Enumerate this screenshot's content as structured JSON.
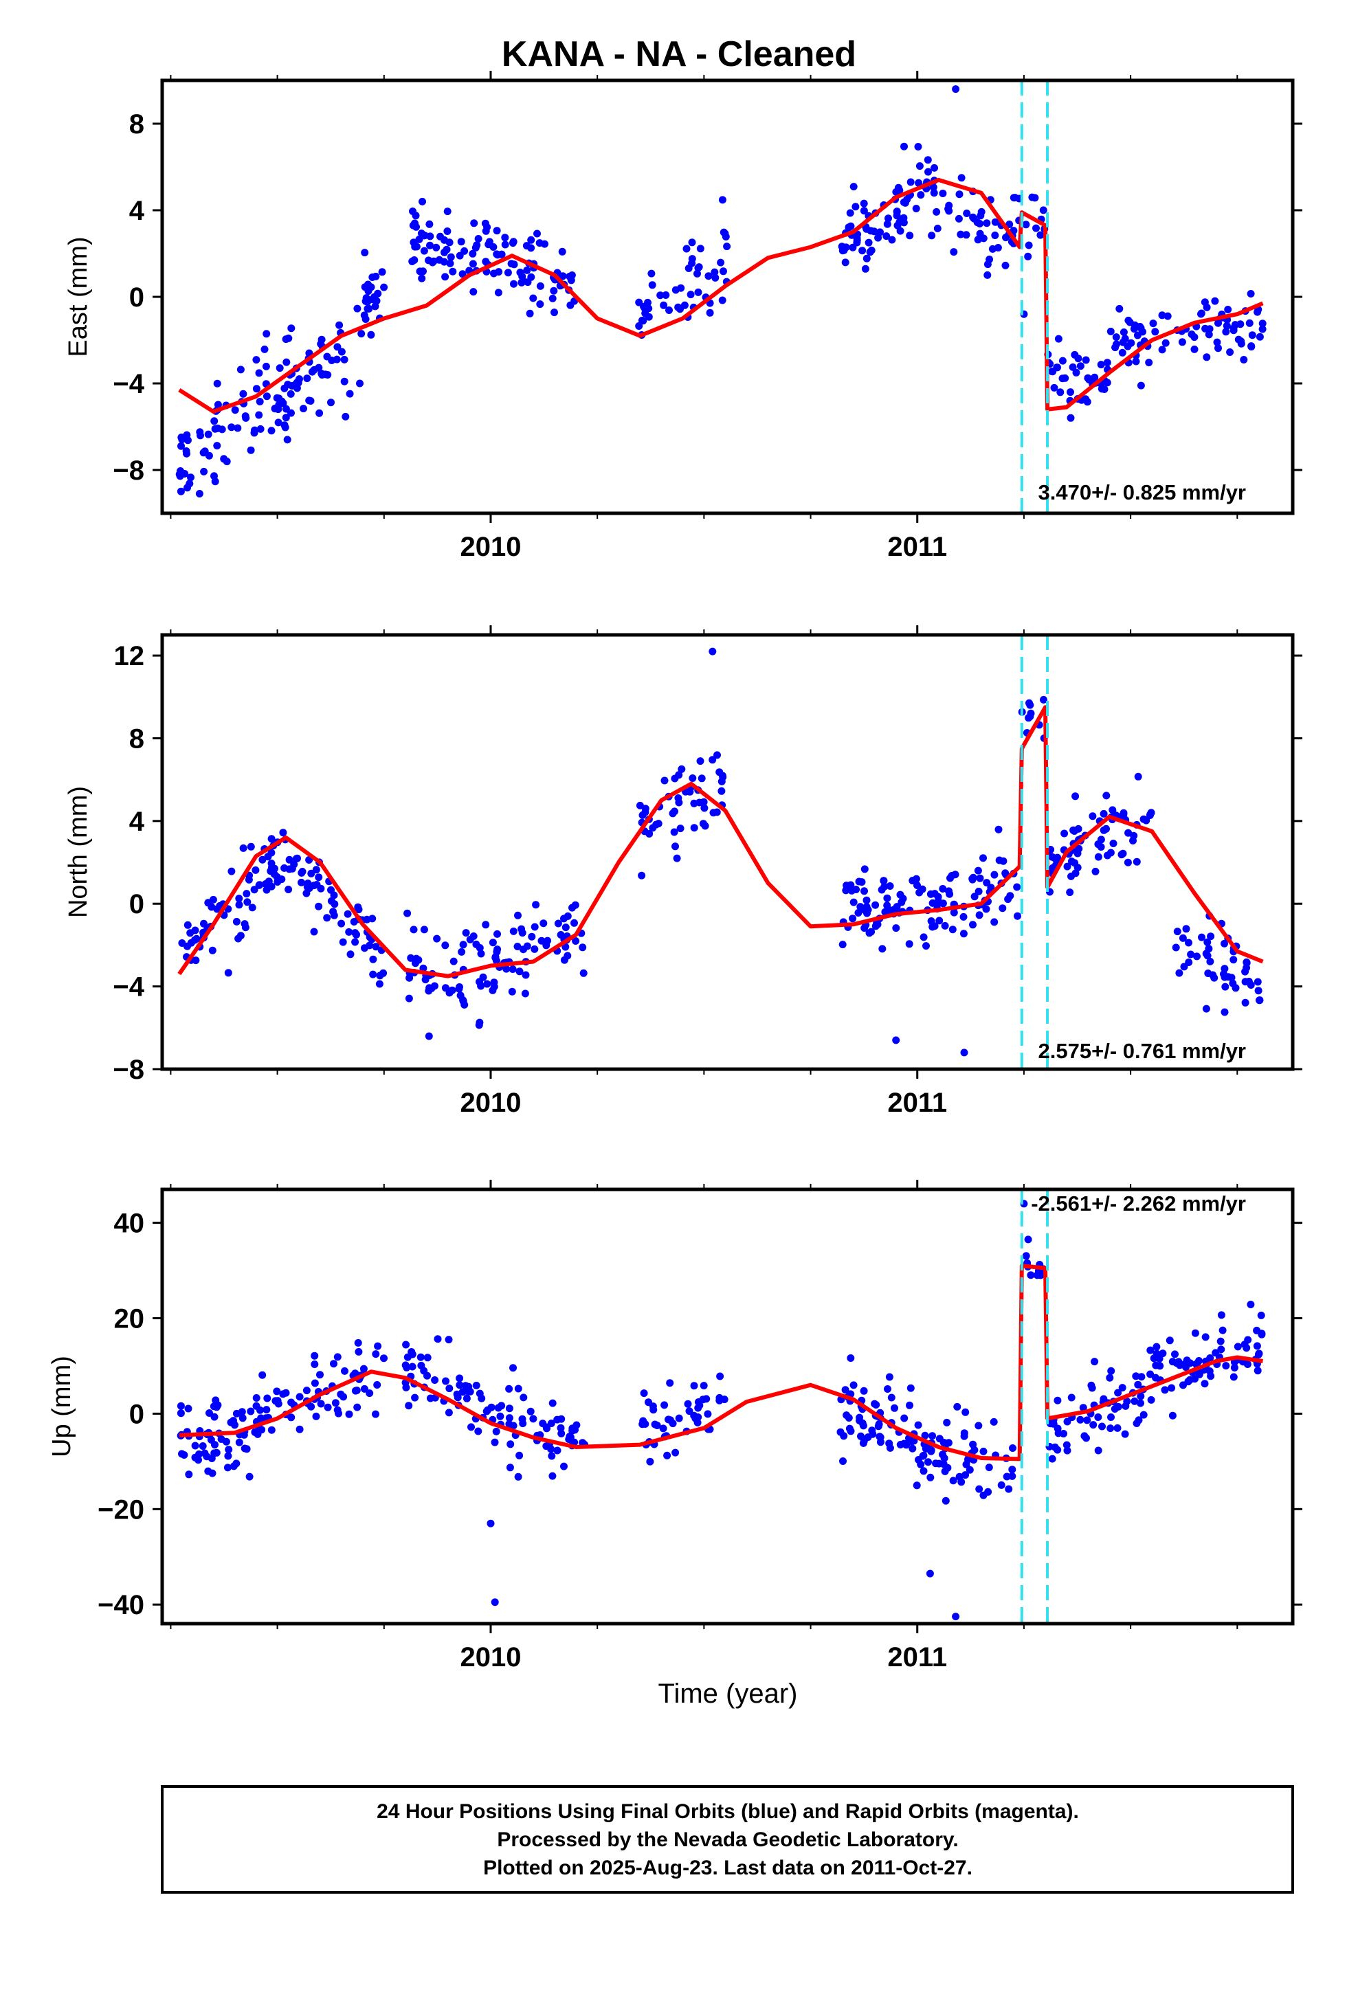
{
  "chart_data": {
    "type": "scatter",
    "title": "KANA  - NA - Cleaned",
    "xlabel": "Time (year)",
    "x_ticks": [
      "2010",
      "2011"
    ],
    "xlim": [
      2009.23,
      2011.88
    ],
    "offset_lines_at": [
      2011.245,
      2011.305
    ],
    "colors": {
      "points": "#0000ff",
      "fit": "#ff0000",
      "offsets": "#33e0f0",
      "frame": "#000000"
    },
    "panels": [
      {
        "ylabel": "East (mm)",
        "ylim": [
          -10,
          10
        ],
        "yticks": [
          -8,
          -4,
          0,
          4,
          8
        ],
        "rate_label": "3.470+/- 0.825 mm/yr",
        "fit": [
          [
            2009.27,
            -4.3
          ],
          [
            2009.35,
            -5.3
          ],
          [
            2009.45,
            -4.6
          ],
          [
            2009.55,
            -3.2
          ],
          [
            2009.65,
            -1.8
          ],
          [
            2009.75,
            -1.0
          ],
          [
            2009.85,
            -0.4
          ],
          [
            2009.95,
            1.0
          ],
          [
            2010.05,
            1.9
          ],
          [
            2010.15,
            1.0
          ],
          [
            2010.25,
            -1.0
          ],
          [
            2010.35,
            -1.8
          ],
          [
            2010.45,
            -1.0
          ],
          [
            2010.55,
            0.5
          ],
          [
            2010.65,
            1.8
          ],
          [
            2010.75,
            2.3
          ],
          [
            2010.85,
            3.0
          ],
          [
            2010.95,
            4.6
          ],
          [
            2011.05,
            5.4
          ],
          [
            2011.15,
            4.8
          ],
          [
            2011.24,
            2.3
          ],
          [
            2011.245,
            3.9
          ],
          [
            2011.3,
            3.3
          ],
          [
            2011.305,
            -5.2
          ],
          [
            2011.35,
            -5.1
          ],
          [
            2011.45,
            -3.5
          ],
          [
            2011.55,
            -2.0
          ],
          [
            2011.65,
            -1.2
          ],
          [
            2011.75,
            -0.8
          ],
          [
            2011.81,
            -0.3
          ]
        ],
        "clusters": [
          {
            "x": [
              2009.27,
              2009.48
            ],
            "y": [
              -8.0,
              -4.5
            ],
            "sd": 1.5,
            "n": 60
          },
          {
            "x": [
              2009.48,
              2009.72
            ],
            "y": [
              -4.8,
              -1.5
            ],
            "sd": 1.5,
            "n": 70
          },
          {
            "x": [
              2009.7,
              2009.75
            ],
            "y": [
              -0.5,
              0.3
            ],
            "sd": 1.2,
            "n": 20
          },
          {
            "x": [
              2009.8,
              2010.0
            ],
            "y": [
              2.5,
              2.0
            ],
            "sd": 1.3,
            "n": 60
          },
          {
            "x": [
              2010.0,
              2010.2
            ],
            "y": [
              2.0,
              0.0
            ],
            "sd": 1.2,
            "n": 55
          },
          {
            "x": [
              2010.34,
              2010.56
            ],
            "y": [
              -0.8,
              2.0
            ],
            "sd": 1.4,
            "n": 50
          },
          {
            "x": [
              2010.82,
              2011.0
            ],
            "y": [
              2.5,
              4.5
            ],
            "sd": 1.2,
            "n": 60
          },
          {
            "x": [
              2011.0,
              2011.24
            ],
            "y": [
              4.8,
              3.0
            ],
            "sd": 1.2,
            "n": 60
          },
          {
            "x": [
              2011.245,
              2011.3
            ],
            "y": [
              3.8,
              3.5
            ],
            "sd": 1.0,
            "n": 10
          },
          {
            "x": [
              2011.305,
              2011.45
            ],
            "y": [
              -3.5,
              -4.0
            ],
            "sd": 1.3,
            "n": 40
          },
          {
            "x": [
              2011.45,
              2011.81
            ],
            "y": [
              -2.0,
              -1.5
            ],
            "sd": 1.2,
            "n": 80
          }
        ],
        "outliers": [
          [
            2011.09,
            9.6
          ],
          [
            2011.25,
            -0.8
          ]
        ]
      },
      {
        "ylabel": "North (mm)",
        "ylim": [
          -8,
          13
        ],
        "yticks": [
          -8,
          -4,
          0,
          4,
          8,
          12
        ],
        "rate_label": "2.575+/- 0.761 mm/yr",
        "fit": [
          [
            2009.27,
            -3.4
          ],
          [
            2009.35,
            -1.0
          ],
          [
            2009.45,
            2.3
          ],
          [
            2009.52,
            3.2
          ],
          [
            2009.6,
            2.0
          ],
          [
            2009.7,
            -1.0
          ],
          [
            2009.8,
            -3.2
          ],
          [
            2009.9,
            -3.5
          ],
          [
            2010.0,
            -3.0
          ],
          [
            2010.1,
            -2.8
          ],
          [
            2010.2,
            -1.5
          ],
          [
            2010.3,
            2.0
          ],
          [
            2010.4,
            5.0
          ],
          [
            2010.47,
            5.8
          ],
          [
            2010.55,
            4.5
          ],
          [
            2010.65,
            1.0
          ],
          [
            2010.75,
            -1.1
          ],
          [
            2010.85,
            -1.0
          ],
          [
            2010.95,
            -0.5
          ],
          [
            2011.05,
            -0.3
          ],
          [
            2011.15,
            0.0
          ],
          [
            2011.24,
            1.8
          ],
          [
            2011.245,
            7.5
          ],
          [
            2011.3,
            9.5
          ],
          [
            2011.305,
            0.8
          ],
          [
            2011.35,
            2.5
          ],
          [
            2011.45,
            4.2
          ],
          [
            2011.55,
            3.5
          ],
          [
            2011.65,
            0.5
          ],
          [
            2011.75,
            -2.3
          ],
          [
            2011.81,
            -2.8
          ]
        ],
        "clusters": [
          {
            "x": [
              2009.27,
              2009.52
            ],
            "y": [
              -2.5,
              2.5
            ],
            "sd": 1.1,
            "n": 70
          },
          {
            "x": [
              2009.52,
              2009.75
            ],
            "y": [
              2.5,
              -3.0
            ],
            "sd": 1.2,
            "n": 60
          },
          {
            "x": [
              2009.8,
              2010.0
            ],
            "y": [
              -3.0,
              -3.5
            ],
            "sd": 1.6,
            "n": 50
          },
          {
            "x": [
              2010.0,
              2010.22
            ],
            "y": [
              -3.0,
              -1.0
            ],
            "sd": 1.3,
            "n": 55
          },
          {
            "x": [
              2010.35,
              2010.55
            ],
            "y": [
              3.5,
              6.0
            ],
            "sd": 1.3,
            "n": 50
          },
          {
            "x": [
              2010.82,
              2011.24
            ],
            "y": [
              -0.5,
              0.5
            ],
            "sd": 1.4,
            "n": 120
          },
          {
            "x": [
              2011.245,
              2011.3
            ],
            "y": [
              8.8,
              9.5
            ],
            "sd": 0.8,
            "n": 10
          },
          {
            "x": [
              2011.305,
              2011.55
            ],
            "y": [
              2.0,
              4.0
            ],
            "sd": 1.2,
            "n": 70
          },
          {
            "x": [
              2011.6,
              2011.81
            ],
            "y": [
              -1.5,
              -4.0
            ],
            "sd": 1.1,
            "n": 50
          }
        ],
        "outliers": [
          [
            2010.52,
            12.2
          ],
          [
            2011.11,
            -7.2
          ],
          [
            2010.95,
            -6.6
          ]
        ]
      },
      {
        "ylabel": "Up (mm)",
        "ylim": [
          -44,
          47
        ],
        "yticks": [
          -40,
          -20,
          0,
          20,
          40
        ],
        "rate_label": "-2.561+/- 2.262 mm/yr",
        "fit": [
          [
            2009.27,
            -4.5
          ],
          [
            2009.4,
            -4.0
          ],
          [
            2009.5,
            -1.0
          ],
          [
            2009.6,
            4.0
          ],
          [
            2009.72,
            8.8
          ],
          [
            2009.8,
            7.5
          ],
          [
            2009.9,
            3.0
          ],
          [
            2010.0,
            -2.0
          ],
          [
            2010.1,
            -5.0
          ],
          [
            2010.2,
            -7.0
          ],
          [
            2010.35,
            -6.5
          ],
          [
            2010.5,
            -3.0
          ],
          [
            2010.6,
            2.5
          ],
          [
            2010.75,
            6.0
          ],
          [
            2010.85,
            3.0
          ],
          [
            2010.95,
            -3.0
          ],
          [
            2011.05,
            -7.0
          ],
          [
            2011.15,
            -9.3
          ],
          [
            2011.24,
            -9.5
          ],
          [
            2011.245,
            31
          ],
          [
            2011.3,
            30.5
          ],
          [
            2011.305,
            -1.0
          ],
          [
            2011.4,
            0.5
          ],
          [
            2011.5,
            4.0
          ],
          [
            2011.6,
            7.5
          ],
          [
            2011.7,
            11.0
          ],
          [
            2011.75,
            11.8
          ],
          [
            2011.81,
            11.0
          ]
        ],
        "clusters": [
          {
            "x": [
              2009.27,
              2009.45
            ],
            "y": [
              -6.0,
              -3.0
            ],
            "sd": 5.5,
            "n": 60
          },
          {
            "x": [
              2009.45,
              2009.75
            ],
            "y": [
              0.0,
              8.0
            ],
            "sd": 5.0,
            "n": 70
          },
          {
            "x": [
              2009.8,
              2010.0
            ],
            "y": [
              10.0,
              0.0
            ],
            "sd": 6.0,
            "n": 50
          },
          {
            "x": [
              2010.0,
              2010.22
            ],
            "y": [
              -3.0,
              -6.0
            ],
            "sd": 5.5,
            "n": 55
          },
          {
            "x": [
              2010.35,
              2010.56
            ],
            "y": [
              -3.0,
              3.0
            ],
            "sd": 5.0,
            "n": 45
          },
          {
            "x": [
              2010.82,
              2011.0
            ],
            "y": [
              2.0,
              -5.0
            ],
            "sd": 5.5,
            "n": 60
          },
          {
            "x": [
              2011.0,
              2011.24
            ],
            "y": [
              -8.0,
              -10.0
            ],
            "sd": 5.0,
            "n": 60
          },
          {
            "x": [
              2011.245,
              2011.3
            ],
            "y": [
              31.0,
              30.5
            ],
            "sd": 1.5,
            "n": 10
          },
          {
            "x": [
              2011.305,
              2011.55
            ],
            "y": [
              -3.0,
              5.0
            ],
            "sd": 5.0,
            "n": 60
          },
          {
            "x": [
              2011.55,
              2011.81
            ],
            "y": [
              7.0,
              16.0
            ],
            "sd": 5.0,
            "n": 70
          }
        ],
        "outliers": [
          [
            2010.01,
            -39.5
          ],
          [
            2011.03,
            -33.5
          ],
          [
            2011.09,
            -42.5
          ],
          [
            2011.25,
            44.0
          ],
          [
            2011.26,
            36.5
          ],
          [
            2010.0,
            -23.0
          ]
        ]
      }
    ]
  },
  "footer": {
    "line1": "24 Hour Positions Using Final Orbits (blue) and Rapid Orbits (magenta).",
    "line2": "Processed by the Nevada Geodetic Laboratory.",
    "line3": "Plotted on 2025-Aug-23. Last data on 2011-Oct-27."
  }
}
